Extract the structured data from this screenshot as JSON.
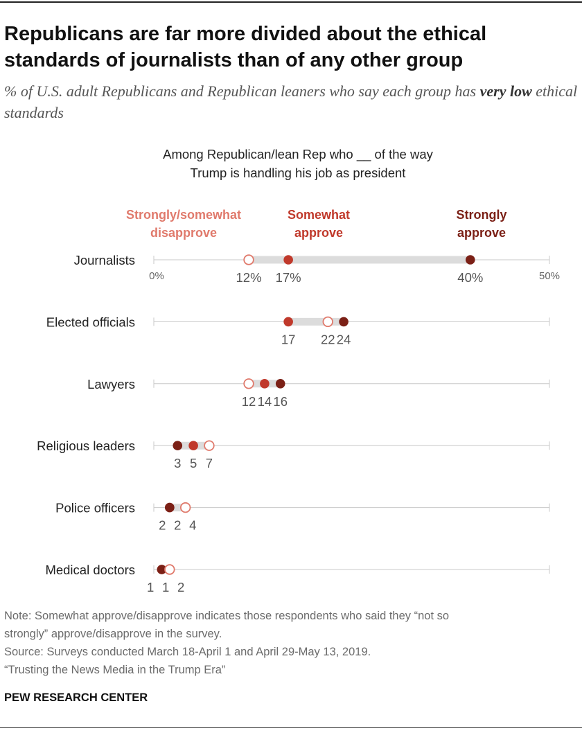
{
  "header": {
    "title": "Republicans are far more divided about the ethical standards of journalists than of any other group",
    "subtitle_pre": "% of U.S. adult Republicans and Republican leaners who say each group has ",
    "subtitle_bold": "very low",
    "subtitle_post": " ethical standards"
  },
  "column_header": {
    "line1": "Among Republican/lean Rep who __ of the way",
    "line2": "Trump is handling his job as president"
  },
  "legend": {
    "disapprove": {
      "line1": "Strongly/somewhat",
      "line2": "disapprove",
      "color": "#e07a6c"
    },
    "somewhat": {
      "line1": "Somewhat",
      "line2": "approve",
      "color": "#c0392b"
    },
    "strongly": {
      "line1": "Strongly",
      "line2": "approve",
      "color": "#7b2016"
    }
  },
  "chart_data": {
    "type": "dot",
    "xlim": [
      0,
      50
    ],
    "axis_labels": [
      "0%",
      "50%"
    ],
    "series": [
      {
        "name": "Strongly/somewhat disapprove",
        "color": "#e07a6c",
        "style": "hollow"
      },
      {
        "name": "Somewhat approve",
        "color": "#c0392b",
        "style": "filled"
      },
      {
        "name": "Strongly approve",
        "color": "#7b2016",
        "style": "filled"
      }
    ],
    "categories": [
      "Journalists",
      "Elected officials",
      "Lawyers",
      "Religious leaders",
      "Police officers",
      "Medical doctors"
    ],
    "rows": [
      {
        "label": "Journalists",
        "values": [
          12,
          17,
          40
        ],
        "value_labels": [
          "12%",
          "17%",
          "40%"
        ]
      },
      {
        "label": "Elected officials",
        "values": [
          22,
          17,
          24
        ],
        "value_labels": [
          "22",
          "17",
          "24"
        ]
      },
      {
        "label": "Lawyers",
        "values": [
          12,
          14,
          16
        ],
        "value_labels": [
          "12",
          "14",
          "16"
        ]
      },
      {
        "label": "Religious leaders",
        "values": [
          7,
          5,
          3
        ],
        "value_labels": [
          "7",
          "5",
          "3"
        ]
      },
      {
        "label": "Police officers",
        "values": [
          4,
          2,
          2
        ],
        "value_labels": [
          "4",
          "2",
          "2"
        ]
      },
      {
        "label": "Medical doctors",
        "values": [
          2,
          1,
          1
        ],
        "value_labels": [
          "2",
          "1",
          "1"
        ]
      }
    ]
  },
  "footer": {
    "note1": "Note: Somewhat approve/disapprove indicates those respondents who said they “not so",
    "note2": "strongly” approve/disapprove in the survey.",
    "source": "Source: Surveys conducted March 18-April 1 and April 29-May 13, 2019.",
    "report": "“Trusting the News Media in the Trump Era”",
    "brand": "PEW RESEARCH CENTER"
  }
}
